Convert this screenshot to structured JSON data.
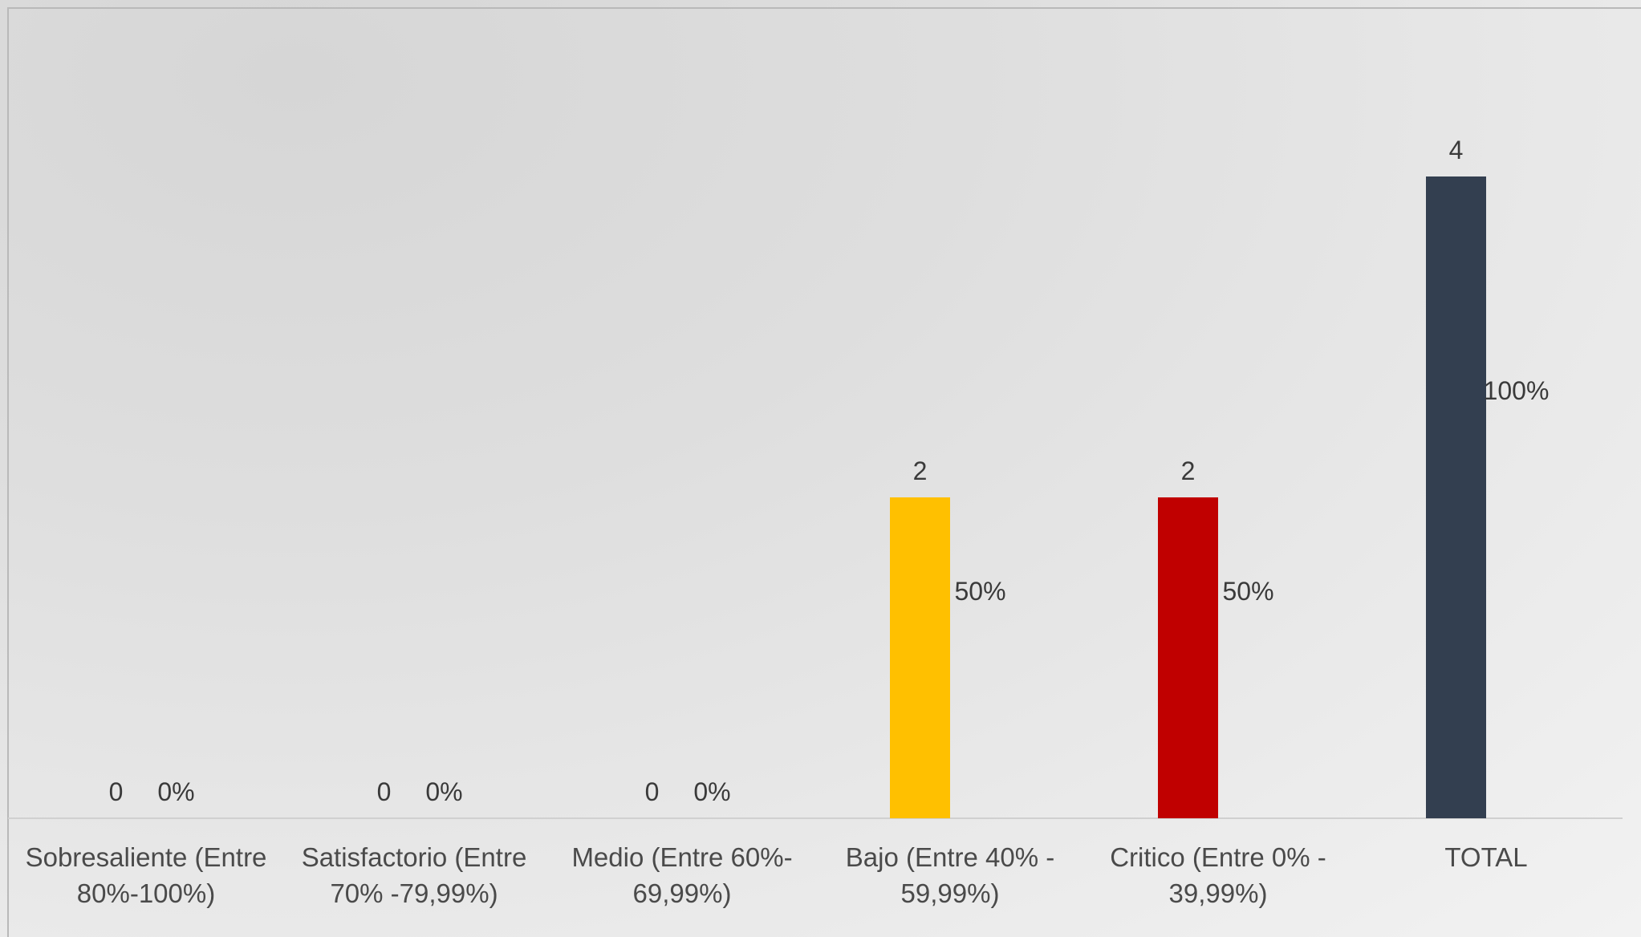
{
  "chart_data": {
    "type": "bar",
    "title": "",
    "xlabel": "",
    "ylabel": "",
    "ylim": [
      0,
      5
    ],
    "grid": false,
    "legend": "none",
    "categories": [
      [
        "Sobresaliente  (Entre",
        "80%-100%)"
      ],
      [
        "Satisfactorio (Entre",
        "70% -79,99%)"
      ],
      [
        "Medio (Entre 60%-",
        "69,99%)"
      ],
      [
        "Bajo (Entre 40% -",
        "59,99%)"
      ],
      [
        "Critico (Entre 0% -",
        "39,99%)"
      ],
      [
        "TOTAL"
      ]
    ],
    "series": [
      {
        "values": [
          0,
          0,
          0,
          2,
          2,
          4
        ],
        "data_labels": [
          "0",
          "0",
          "0",
          "2",
          "2",
          "4"
        ],
        "colors": [
          "#a9d18e",
          "#5b9bd5",
          "#ed7d31",
          "#ffc000",
          "#c00000",
          "#333f50"
        ]
      },
      {
        "values": [
          0,
          0,
          0,
          50,
          50,
          100
        ],
        "data_labels": [
          "0%",
          "0%",
          "0%",
          "50%",
          "50%",
          "100%"
        ],
        "colors": [
          "#ffffff",
          "#ffffff",
          "#ffffff",
          "#ffffff",
          "#ffffff",
          "#ffffff"
        ]
      }
    ]
  }
}
